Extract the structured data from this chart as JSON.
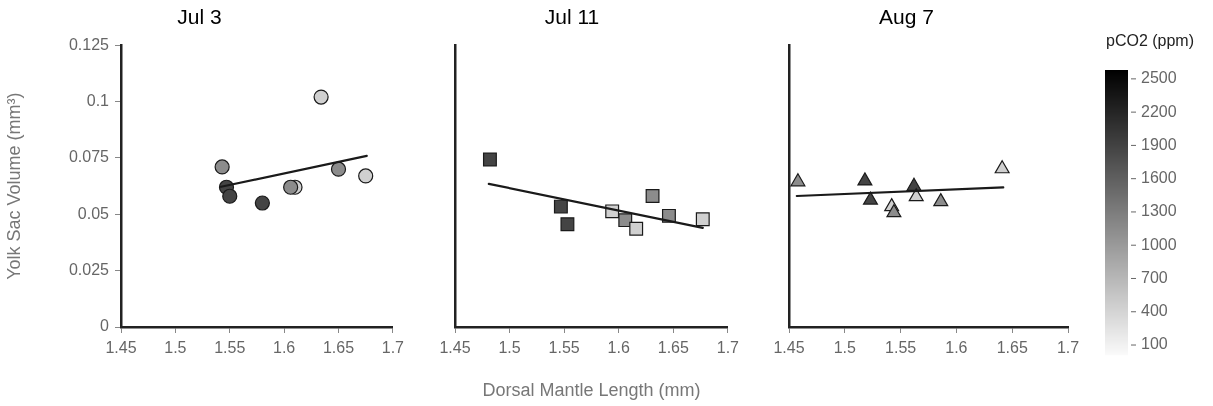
{
  "chart_data": [
    {
      "type": "scatter",
      "title": "Jul 3",
      "ylabel": "Yolk Sac Volume (mm³)",
      "marker": "circle",
      "xlim": [
        1.45,
        1.7
      ],
      "xticks": [
        1.45,
        1.5,
        1.55,
        1.6,
        1.65,
        1.7
      ],
      "ylim": [
        0,
        0.125
      ],
      "yticks": [
        0,
        0.025,
        0.05,
        0.075,
        0.1,
        0.125
      ],
      "series": [
        {
          "x": [
            1.543,
            1.547,
            1.55,
            1.58,
            1.61,
            1.606,
            1.634,
            1.65,
            1.675
          ],
          "values": [
            0.071,
            0.062,
            0.058,
            0.055,
            0.062,
            0.062,
            0.102,
            0.07,
            0.067
          ],
          "colors": [
            "#8c8c8c",
            "#444444",
            "#444444",
            "#444444",
            "#d0d0d0",
            "#8c8c8c",
            "#d0d0d0",
            "#8c8c8c",
            "#d0d0d0"
          ]
        },
        {
          "type": "line",
          "color": "#1a1a1a",
          "marker": "none",
          "x": [
            1.542,
            1.676
          ],
          "values": [
            0.0622,
            0.0759
          ]
        }
      ]
    },
    {
      "type": "scatter",
      "title": "Jul 11",
      "xlabel": "Dorsal Mantle Length (mm)",
      "marker": "square",
      "tick_labels": "x",
      "xlim": [
        1.45,
        1.7
      ],
      "xticks": [
        1.45,
        1.5,
        1.55,
        1.6,
        1.65,
        1.7
      ],
      "ylim": [
        0,
        0.125
      ],
      "series": [
        {
          "x": [
            1.482,
            1.547,
            1.553,
            1.594,
            1.606,
            1.616,
            1.631,
            1.646,
            1.677
          ],
          "values": [
            0.0743,
            0.0534,
            0.0456,
            0.0513,
            0.0474,
            0.0436,
            0.0581,
            0.0493,
            0.0478
          ],
          "colors": [
            "#444444",
            "#444444",
            "#444444",
            "#d0d0d0",
            "#8c8c8c",
            "#d0d0d0",
            "#8c8c8c",
            "#8c8c8c",
            "#d0d0d0"
          ]
        },
        {
          "type": "line",
          "color": "#1a1a1a",
          "marker": "none",
          "x": [
            1.481,
            1.677
          ],
          "values": [
            0.0635,
            0.044
          ]
        }
      ]
    },
    {
      "type": "scatter",
      "title": "Aug 7",
      "marker": "triangle",
      "tick_labels": "x",
      "xlim": [
        1.45,
        1.7
      ],
      "xticks": [
        1.45,
        1.5,
        1.55,
        1.6,
        1.65,
        1.7
      ],
      "ylim": [
        0,
        0.125
      ],
      "clabel": "pCO2 (ppm)",
      "clim": [
        10,
        2580
      ],
      "cticks": [
        100,
        400,
        700,
        1000,
        1300,
        1600,
        1900,
        2200,
        2500
      ],
      "series": [
        {
          "x": [
            1.458,
            1.518,
            1.523,
            1.542,
            1.544,
            1.562,
            1.564,
            1.586,
            1.641
          ],
          "values": [
            0.0644,
            0.0648,
            0.0563,
            0.0534,
            0.0507,
            0.0624,
            0.0578,
            0.0556,
            0.0702
          ],
          "colors": [
            "#8c8c8c",
            "#444444",
            "#444444",
            "#d0d0d0",
            "#8c8c8c",
            "#444444",
            "#d0d0d0",
            "#8c8c8c",
            "#d0d0d0"
          ]
        },
        {
          "type": "line",
          "color": "#1a1a1a",
          "marker": "none",
          "x": [
            1.457,
            1.642
          ],
          "values": [
            0.0581,
            0.0619
          ]
        }
      ]
    }
  ]
}
